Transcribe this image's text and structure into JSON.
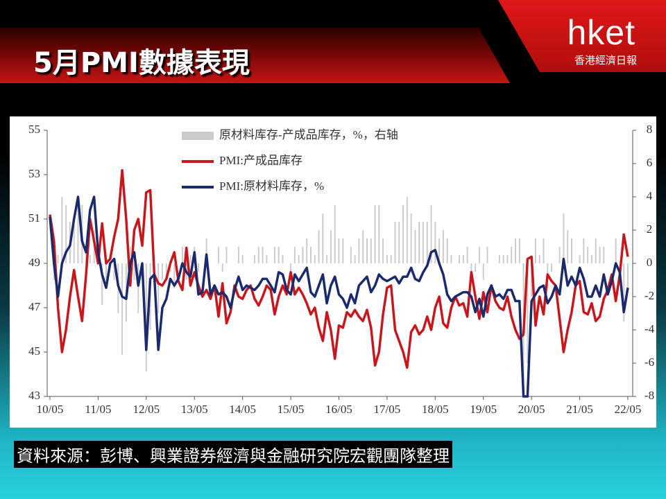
{
  "header": {
    "title": "5月PMI數據表現"
  },
  "logo": {
    "brand": "hket",
    "name": "香港經濟日報"
  },
  "source": "資料來源：彭博、興業證券經濟與金融研究院宏觀團隊整理",
  "chart_data": {
    "type": "line",
    "categories": [
      "10/05",
      null,
      null,
      null,
      null,
      null,
      null,
      null,
      null,
      null,
      null,
      null,
      "11/05",
      null,
      null,
      null,
      null,
      null,
      null,
      null,
      null,
      null,
      null,
      null,
      "12/05",
      null,
      null,
      null,
      null,
      null,
      null,
      null,
      null,
      null,
      null,
      null,
      "13/05",
      null,
      null,
      null,
      null,
      null,
      null,
      null,
      null,
      null,
      null,
      null,
      "14/05",
      null,
      null,
      null,
      null,
      null,
      null,
      null,
      null,
      null,
      null,
      null,
      "15/05",
      null,
      null,
      null,
      null,
      null,
      null,
      null,
      null,
      null,
      null,
      null,
      "16/05",
      null,
      null,
      null,
      null,
      null,
      null,
      null,
      null,
      null,
      null,
      null,
      "17/05",
      null,
      null,
      null,
      null,
      null,
      null,
      null,
      null,
      null,
      null,
      null,
      "18/05",
      null,
      null,
      null,
      null,
      null,
      null,
      null,
      null,
      null,
      null,
      null,
      "19/05",
      null,
      null,
      null,
      null,
      null,
      null,
      null,
      null,
      null,
      null,
      null,
      "20/05",
      null,
      null,
      null,
      null,
      null,
      null,
      null,
      null,
      null,
      null,
      null,
      "21/05",
      null,
      null,
      null,
      null,
      null,
      null,
      null,
      null,
      null,
      null,
      null,
      "22/05"
    ],
    "ylim": [
      43,
      55
    ],
    "yticks": [
      43,
      45,
      47,
      49,
      51,
      53,
      55
    ],
    "y2lim": [
      -8,
      8
    ],
    "y2ticks": [
      -8,
      -6,
      -4,
      -2,
      0,
      2,
      4,
      6,
      8
    ],
    "series": [
      {
        "name": "原材料库存-产成品库存，%，右轴",
        "type": "bar",
        "axis": "y2",
        "color": "#cccccc",
        "values": [
          0,
          -1,
          0.5,
          4,
          3.5,
          2.5,
          2.5,
          4,
          3.5,
          1,
          0.5,
          2,
          0.5,
          -2.5,
          -1,
          0,
          -1,
          -3,
          -5.5,
          -3.5,
          1,
          -1,
          -3,
          -1,
          -6.5,
          -4,
          0,
          -3,
          -1,
          -1,
          -0.5,
          -1.5,
          0,
          1,
          -1,
          0.5,
          1,
          -0.5,
          0,
          1.5,
          0,
          0,
          1,
          -0.5,
          1,
          0,
          0,
          1,
          0.5,
          0,
          0,
          0.5,
          1,
          1,
          0.5,
          0,
          1,
          1,
          0.5,
          0,
          -1,
          1,
          0.5,
          1,
          1.5,
          1,
          0.5,
          2,
          3,
          0.5,
          2,
          3.5,
          1.5,
          1.5,
          0,
          1,
          0.5,
          1.5,
          2,
          1.5,
          1.5,
          3.5,
          3.5,
          1.5,
          0.5,
          0.5,
          2.5,
          2.5,
          3.5,
          4,
          3,
          2,
          2.5,
          2.5,
          2.5,
          3.5,
          2.5,
          1.5,
          2,
          1.5,
          0.5,
          0,
          0.5,
          0.5,
          1,
          -1,
          -0.5,
          1,
          -1,
          1,
          0,
          0,
          0.5,
          0.5,
          0.5,
          1,
          1.5,
          1.5,
          -8,
          -6,
          -2,
          1.5,
          0.5,
          1.5,
          -1.5,
          -0.5,
          0,
          1,
          3,
          2,
          1.5,
          0,
          0.5,
          1.5,
          1,
          0.5,
          1.5,
          1,
          1,
          0,
          0,
          1.5,
          0,
          -3.5,
          -1.5
        ]
      },
      {
        "name": "PMI:产成品库存",
        "color": "#c8161d",
        "values": [
          51.2,
          50.0,
          47.0,
          45.0,
          46.0,
          47.5,
          48.7,
          47.5,
          46.4,
          48.5,
          51.0,
          50.0,
          49.0,
          50.8,
          49.0,
          49.2,
          50.2,
          51.0,
          53.2,
          51.0,
          48.0,
          50.5,
          51.0,
          49.8,
          52.2,
          52.3,
          48.5,
          48.1,
          48.0,
          48.3,
          49.0,
          49.5,
          48.2,
          47.8,
          49.7,
          48.0,
          48.6,
          48.0,
          47.5,
          47.8,
          47.4,
          48.0,
          46.6,
          48.1,
          46.3,
          46.8,
          48.0,
          47.5,
          47.4,
          47.8,
          48.0,
          47.4,
          47.1,
          47.5,
          48.0,
          47.8,
          46.7,
          47.5,
          48.0,
          47.6,
          48.6,
          47.6,
          47.9,
          47.6,
          47.2,
          46.7,
          47.0,
          46.1,
          45.5,
          46.8,
          46.0,
          44.7,
          46.2,
          46.1,
          46.8,
          46.6,
          46.9,
          46.6,
          46.4,
          46.9,
          46.1,
          44.4,
          45.0,
          46.7,
          47.9,
          48.0,
          46.0,
          45.5,
          45.0,
          44.3,
          45.9,
          46.2,
          45.8,
          46.0,
          46.6,
          46.0,
          47.0,
          47.5,
          46.3,
          46.1,
          47.0,
          47.5,
          47.1,
          47.2,
          46.6,
          48.6,
          47.5,
          46.5,
          47.7,
          46.8,
          48.0,
          47.3,
          47.0,
          46.9,
          47.5,
          46.6,
          46.0,
          45.6,
          45.8,
          49.2,
          49.3,
          46.2,
          47.5,
          46.7,
          48.5,
          48.2,
          48.0,
          46.5,
          45.0,
          46.0,
          46.8,
          48.0,
          48.2,
          46.8,
          46.7,
          47.2,
          46.4,
          46.6,
          47.4,
          47.8,
          48.5,
          47.3,
          48.5,
          50.3,
          49.3
        ]
      },
      {
        "name": "PMI:原材料库存，%",
        "color": "#1a2a6c",
        "values": [
          51.1,
          49.0,
          47.5,
          49.0,
          49.5,
          49.8,
          51.0,
          52.0,
          50.0,
          49.5,
          51.4,
          52.0,
          49.5,
          48.5,
          47.9,
          49.0,
          49.2,
          48.0,
          47.5,
          47.4,
          49.0,
          49.5,
          48.0,
          49.0,
          45.1,
          48.3,
          48.5,
          45.1,
          47.0,
          47.4,
          48.3,
          48.0,
          48.3,
          49.0,
          48.6,
          48.4,
          49.5,
          47.6,
          47.7,
          49.4,
          47.6,
          48.0,
          47.6,
          47.7,
          47.5,
          47.0,
          47.8,
          48.4,
          47.8,
          48.0,
          47.9,
          47.8,
          48.0,
          48.3,
          48.3,
          48.0,
          47.7,
          48.6,
          48.5,
          47.8,
          47.6,
          48.5,
          48.2,
          48.5,
          48.8,
          47.7,
          47.5,
          48.0,
          48.5,
          47.2,
          48.0,
          48.4,
          47.6,
          47.4,
          47.0,
          47.6,
          47.2,
          48.0,
          48.2,
          48.4,
          47.7,
          48.0,
          48.5,
          48.3,
          48.2,
          48.3,
          48.4,
          48.1,
          48.4,
          48.4,
          48.8,
          48.3,
          48.2,
          48.6,
          48.9,
          49.5,
          49.6,
          49.0,
          48.5,
          47.6,
          47.3,
          47.5,
          47.6,
          47.7,
          47.7,
          47.5,
          46.8,
          47.4,
          46.6,
          47.6,
          48.0,
          47.5,
          47.6,
          47.4,
          47.8,
          47.8,
          47.3,
          47.3,
          43.0,
          43.0,
          47.3,
          47.6,
          47.9,
          48.0,
          47.2,
          47.5,
          48.0,
          47.6,
          49.2,
          48.0,
          48.4,
          48.0,
          48.8,
          48.3,
          47.5,
          47.5,
          48.0,
          47.5,
          48.5,
          47.6,
          48.2,
          49.0,
          48.6,
          46.8,
          47.9
        ]
      }
    ]
  }
}
